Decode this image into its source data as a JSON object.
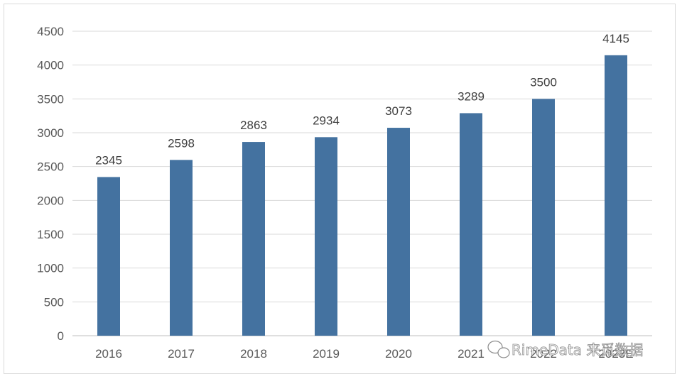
{
  "chart_data": {
    "type": "bar",
    "categories": [
      "2016",
      "2017",
      "2018",
      "2019",
      "2020",
      "2021",
      "2022",
      "2023E"
    ],
    "values": [
      2345,
      2598,
      2863,
      2934,
      3073,
      3289,
      3500,
      4145
    ],
    "ylim": [
      0,
      4500
    ],
    "yticks": [
      0,
      500,
      1000,
      1500,
      2000,
      2500,
      3000,
      3500,
      4000,
      4500
    ],
    "grid": true,
    "legend": "none",
    "bar_color": "#4472a0",
    "data_labels": true
  },
  "watermark": {
    "text": "RimeData 来觅数据",
    "icon": "wechat-icon"
  }
}
